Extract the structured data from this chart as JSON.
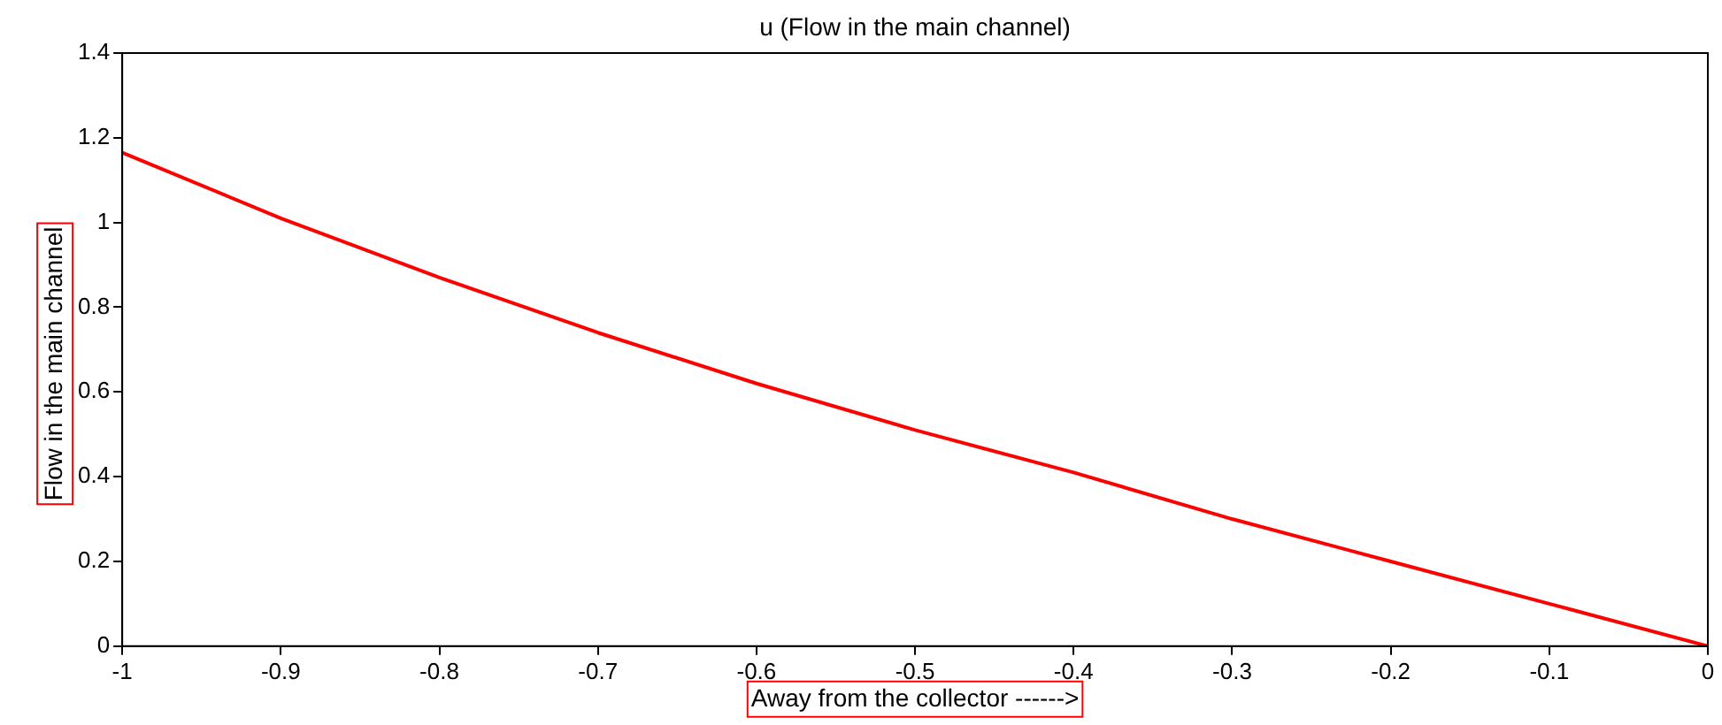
{
  "chart_data": {
    "type": "line",
    "title": "u (Flow in the main channel)",
    "xlabel": "Away from the collector ------>",
    "ylabel": "Flow in the main channel",
    "x": [
      -1,
      -0.9,
      -0.8,
      -0.7,
      -0.6,
      -0.5,
      -0.4,
      -0.3,
      -0.2,
      -0.1,
      0
    ],
    "series": [
      {
        "color": "#ff0000",
        "values": [
          1.165,
          1.01,
          0.87,
          0.74,
          0.62,
          0.51,
          0.41,
          0.3,
          0.2,
          0.1,
          0
        ]
      }
    ],
    "xlim": [
      -1,
      0
    ],
    "xticks": [
      -1,
      -0.9,
      -0.8,
      -0.7,
      -0.6,
      -0.5,
      -0.4,
      -0.3,
      -0.2,
      -0.1,
      0
    ],
    "ylim": [
      0,
      1.4
    ],
    "yticks": [
      0,
      0.2,
      0.4,
      0.6,
      0.8,
      1,
      1.2,
      1.4
    ],
    "grid": false,
    "legend": false,
    "marker": "none",
    "line_style": "solid"
  }
}
